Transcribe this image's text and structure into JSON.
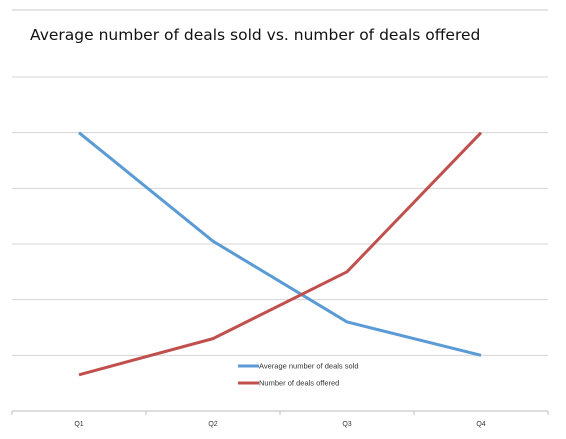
{
  "chart_data": {
    "type": "line",
    "title": "Average number of deals sold vs. number of deals offered",
    "xlabel": "",
    "ylabel": "",
    "categories": [
      "Q1",
      "Q2",
      "Q3",
      "Q4"
    ],
    "ylim": [
      0,
      6
    ],
    "grid": true,
    "legend_position": "bottom-center",
    "series": [
      {
        "name": "Average number of deals sold",
        "color": "#5b9bd5",
        "values": [
          5,
          3.05,
          1.6,
          1
        ]
      },
      {
        "name": "Number of deals offered",
        "color": "#c0504d",
        "values": [
          0.65,
          1.3,
          2.5,
          5
        ]
      }
    ]
  }
}
